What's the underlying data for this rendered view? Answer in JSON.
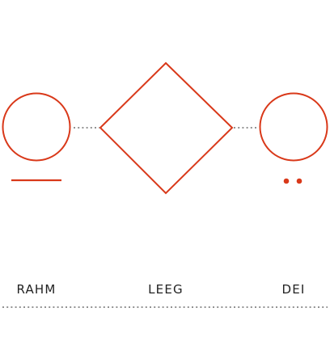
{
  "colors": {
    "accent": "#d9391a",
    "connector": "#6f6f6f",
    "text": "#222222"
  },
  "nodes": [
    {
      "id": "left",
      "shape": "circle",
      "marker": "bar",
      "label": "RAHM"
    },
    {
      "id": "center",
      "shape": "diamond",
      "marker": "none",
      "label": "LEEG"
    },
    {
      "id": "right",
      "shape": "circle",
      "marker": "two-dots",
      "label": "DEI"
    }
  ]
}
